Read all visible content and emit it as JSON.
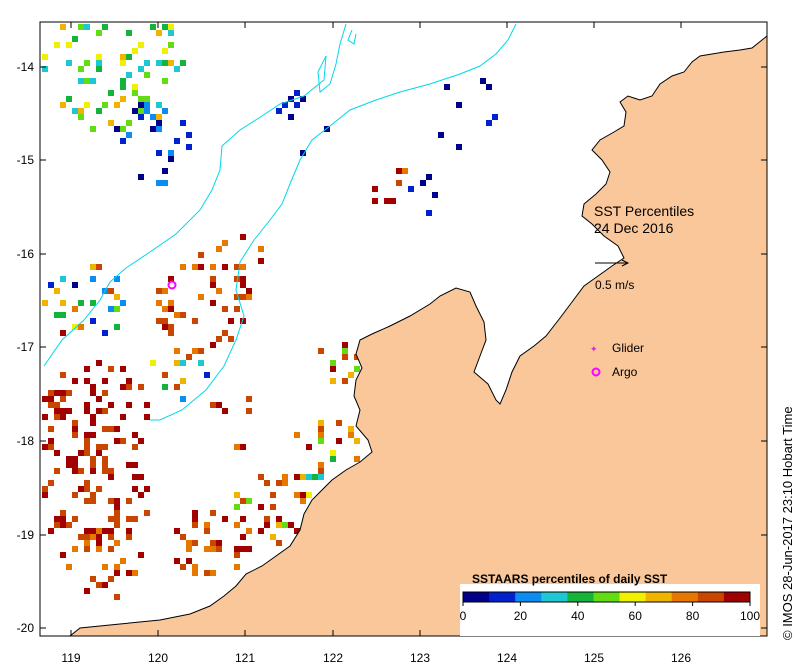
{
  "map": {
    "title_line1": "SST Percentiles",
    "title_line2": "24 Dec 2016",
    "credit": "© IMOS 28-Jun-2017 23:10 Hobart Time",
    "land_color": "#f9c79a",
    "coast_color": "#000000",
    "shelf_contour_color": "#00d8e8",
    "lon_ticks": [
      "119",
      "120",
      "121",
      "122",
      "123",
      "124",
      "125",
      "126"
    ],
    "lat_ticks": [
      "-14",
      "-15",
      "-16",
      "-17",
      "-18",
      "-19",
      "-20"
    ]
  },
  "legend": {
    "arrow_label": "0.5 m/s",
    "glider_label": "Glider",
    "argo_label": "Argo",
    "glider_color": "#e020e0",
    "argo_color": "#ff00ff"
  },
  "colorbar": {
    "title": "SSTAARS percentiles of daily SST",
    "ticks": [
      "0",
      "20",
      "40",
      "60",
      "80",
      "100"
    ],
    "colors": [
      "#00008b",
      "#0022cc",
      "#0a8cf0",
      "#1ec8d2",
      "#14b43c",
      "#64dc14",
      "#f0f000",
      "#f0b400",
      "#e67800",
      "#c84600",
      "#a00000"
    ]
  }
}
